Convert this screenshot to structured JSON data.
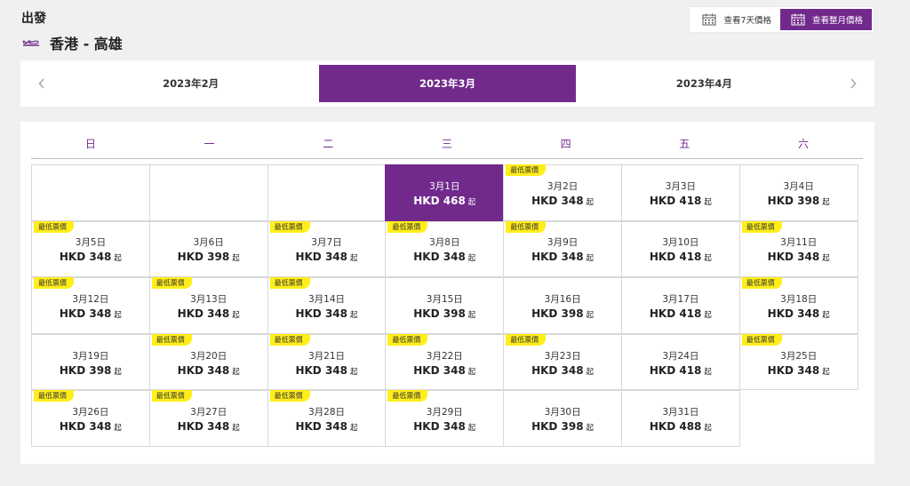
{
  "header": {
    "direction": "出發",
    "route": "香港 - 高雄"
  },
  "view_toggle": {
    "seven_day": "查看7天價格",
    "whole_month": "查看整月價格"
  },
  "months": [
    {
      "label": "2023年2月",
      "active": false
    },
    {
      "label": "2023年3月",
      "active": true
    },
    {
      "label": "2023年4月",
      "active": false
    }
  ],
  "weekdays": [
    "日",
    "一",
    "二",
    "三",
    "四",
    "五",
    "六"
  ],
  "currency": "HKD",
  "from_suffix": "起",
  "lowest_badge": "最低票價",
  "colors": {
    "brand_purple": "#712a8c",
    "badge_yellow": "#ffee1a"
  },
  "calendar": [
    [
      {
        "type": "empty"
      },
      {
        "type": "empty"
      },
      {
        "type": "empty"
      },
      {
        "date": "3月1日",
        "price": "HKD 468",
        "lowest": false,
        "selected": true
      },
      {
        "date": "3月2日",
        "price": "HKD 348",
        "lowest": true
      },
      {
        "date": "3月3日",
        "price": "HKD 418",
        "lowest": false
      },
      {
        "date": "3月4日",
        "price": "HKD 398",
        "lowest": false
      }
    ],
    [
      {
        "date": "3月5日",
        "price": "HKD 348",
        "lowest": true
      },
      {
        "date": "3月6日",
        "price": "HKD 398",
        "lowest": false
      },
      {
        "date": "3月7日",
        "price": "HKD 348",
        "lowest": true
      },
      {
        "date": "3月8日",
        "price": "HKD 348",
        "lowest": true
      },
      {
        "date": "3月9日",
        "price": "HKD 348",
        "lowest": true
      },
      {
        "date": "3月10日",
        "price": "HKD 418",
        "lowest": false
      },
      {
        "date": "3月11日",
        "price": "HKD 348",
        "lowest": true
      }
    ],
    [
      {
        "date": "3月12日",
        "price": "HKD 348",
        "lowest": true
      },
      {
        "date": "3月13日",
        "price": "HKD 348",
        "lowest": true
      },
      {
        "date": "3月14日",
        "price": "HKD 348",
        "lowest": true
      },
      {
        "date": "3月15日",
        "price": "HKD 398",
        "lowest": false
      },
      {
        "date": "3月16日",
        "price": "HKD 398",
        "lowest": false
      },
      {
        "date": "3月17日",
        "price": "HKD 418",
        "lowest": false
      },
      {
        "date": "3月18日",
        "price": "HKD 348",
        "lowest": true
      }
    ],
    [
      {
        "date": "3月19日",
        "price": "HKD 398",
        "lowest": false
      },
      {
        "date": "3月20日",
        "price": "HKD 348",
        "lowest": true
      },
      {
        "date": "3月21日",
        "price": "HKD 348",
        "lowest": true
      },
      {
        "date": "3月22日",
        "price": "HKD 348",
        "lowest": true
      },
      {
        "date": "3月23日",
        "price": "HKD 348",
        "lowest": true
      },
      {
        "date": "3月24日",
        "price": "HKD 418",
        "lowest": false
      },
      {
        "date": "3月25日",
        "price": "HKD 348",
        "lowest": true
      }
    ],
    [
      {
        "date": "3月26日",
        "price": "HKD 348",
        "lowest": true
      },
      {
        "date": "3月27日",
        "price": "HKD 348",
        "lowest": true
      },
      {
        "date": "3月28日",
        "price": "HKD 348",
        "lowest": true
      },
      {
        "date": "3月29日",
        "price": "HKD 348",
        "lowest": true
      },
      {
        "date": "3月30日",
        "price": "HKD 398",
        "lowest": false
      },
      {
        "date": "3月31日",
        "price": "HKD 488",
        "lowest": false
      },
      {
        "type": "blank"
      }
    ]
  ]
}
